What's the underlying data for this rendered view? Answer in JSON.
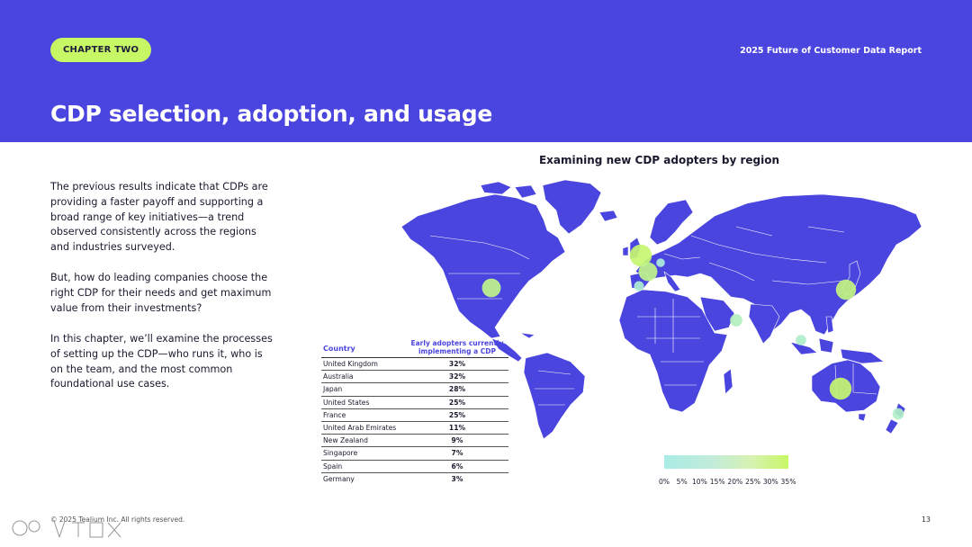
{
  "header": {
    "chapter": "CHAPTER TWO",
    "report_title": "2025 Future of Customer Data Report",
    "heading": "CDP selection, adoption, and usage"
  },
  "body": {
    "p1": "The previous results indicate that CDPs are providing a faster payoff and supporting a broad range of key initiatives—a trend observed consistently across the regions and industries surveyed.",
    "p2": "But, how do leading companies choose the right CDP for their needs and get maximum value from their investments?",
    "p3": "In this chapter, we’ll examine the processes of setting up the CDP—who runs it, who is on the team, and the most common foundational use cases."
  },
  "map": {
    "title": "Examining new CDP adopters by region",
    "land_color": "#4b45e0",
    "low_color": "#a9ece6",
    "high_color": "#c8f766"
  },
  "table": {
    "col_country": "Country",
    "col_value": "Early adopters currently implementing a CDP",
    "rows": [
      {
        "country": "United Kingdom",
        "value": "32%"
      },
      {
        "country": "Australia",
        "value": "32%"
      },
      {
        "country": "Japan",
        "value": "28%"
      },
      {
        "country": "United States",
        "value": "25%"
      },
      {
        "country": "France",
        "value": "25%"
      },
      {
        "country": "United Arab Emirates",
        "value": "11%"
      },
      {
        "country": "New Zealand",
        "value": "9%"
      },
      {
        "country": "Singapore",
        "value": "7%"
      },
      {
        "country": "Spain",
        "value": "6%"
      },
      {
        "country": "Germany",
        "value": "3%"
      }
    ]
  },
  "legend": {
    "ticks": [
      "0%",
      "5%",
      "10%",
      "15%",
      "20%",
      "25%",
      "30%",
      "35%"
    ]
  },
  "footer": {
    "copyright": "© 2025 Tealium Inc. All rights reserved.",
    "page": "13"
  }
}
